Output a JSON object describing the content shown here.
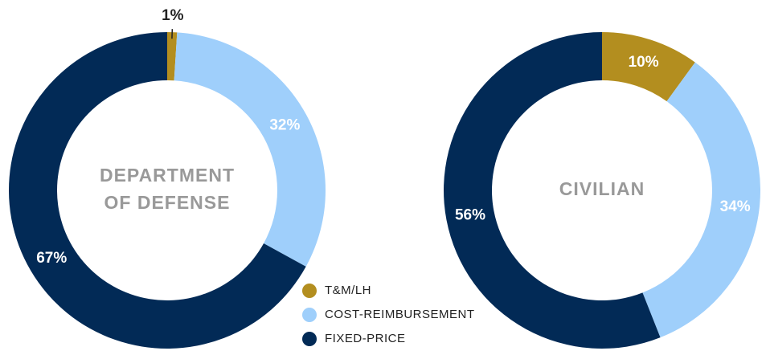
{
  "chart_data": [
    {
      "type": "pie",
      "title": [
        "DEPARTMENT",
        "OF DEFENSE"
      ],
      "values": [
        1,
        32,
        67
      ],
      "value_labels": [
        "1%",
        "32%",
        "67%"
      ]
    },
    {
      "type": "pie",
      "title": [
        "CIVILIAN"
      ],
      "values": [
        10,
        34,
        56
      ],
      "value_labels": [
        "10%",
        "34%",
        "56%"
      ]
    }
  ],
  "legend": {
    "labels": [
      "T&M/LH",
      "COST-REIMBURSEMENT",
      "FIXED-PRICE"
    ],
    "colors": [
      "#b38e1f",
      "#9fcffb",
      "#022a56"
    ]
  }
}
